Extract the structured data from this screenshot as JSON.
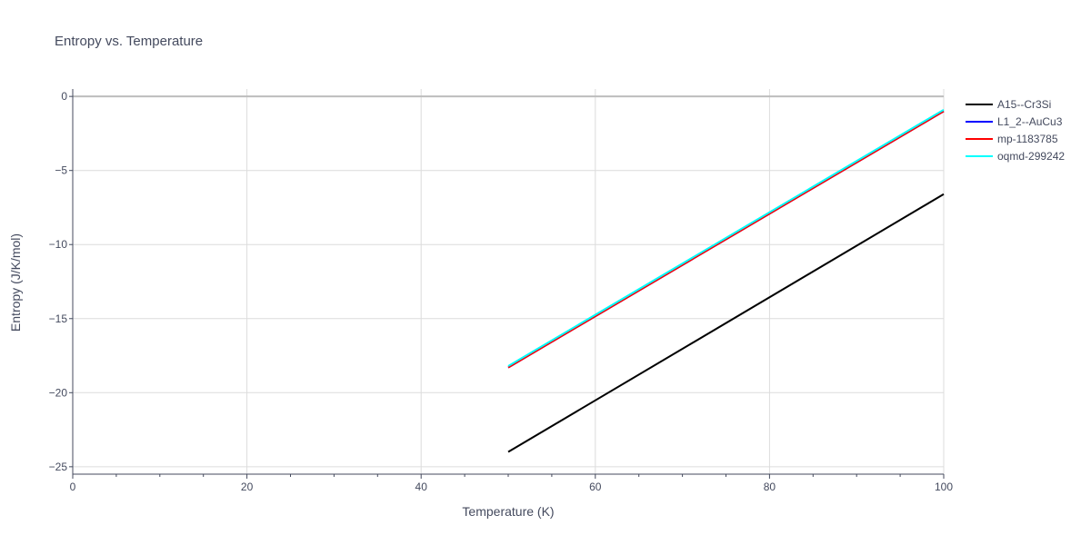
{
  "chart_data": {
    "type": "line",
    "title": "Entropy vs. Temperature",
    "xlabel": "Temperature (K)",
    "ylabel": "Entropy (J/K/mol)",
    "xlim": [
      0,
      100
    ],
    "ylim": [
      -25.5,
      0.5
    ],
    "xticks": [
      0,
      20,
      40,
      60,
      80,
      100
    ],
    "xtick_labels": [
      "0",
      "20",
      "40",
      "60",
      "80",
      "100"
    ],
    "yticks": [
      0,
      -5,
      -10,
      -15,
      -20,
      -25
    ],
    "ytick_labels": [
      "0",
      "−5",
      "−10",
      "−15",
      "−20",
      "−25"
    ],
    "grid": true,
    "legend_position": "right",
    "series": [
      {
        "name": "A15--Cr3Si",
        "color": "#000000",
        "x": [
          50,
          100
        ],
        "y": [
          -24.0,
          -6.6
        ]
      },
      {
        "name": "L1_2--AuCu3",
        "color": "#0000ff",
        "x": [
          50,
          100
        ],
        "y": [
          -18.3,
          -1.0
        ]
      },
      {
        "name": "mp-1183785",
        "color": "#ff0000",
        "x": [
          50,
          100
        ],
        "y": [
          -18.3,
          -1.0
        ]
      },
      {
        "name": "oqmd-299242",
        "color": "#00ffff",
        "x": [
          50,
          100
        ],
        "y": [
          -18.2,
          -0.9
        ]
      }
    ]
  }
}
